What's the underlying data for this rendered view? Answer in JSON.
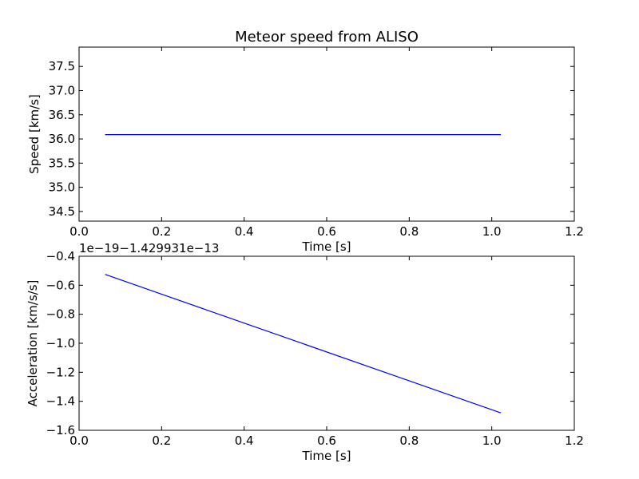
{
  "chart_data": [
    {
      "type": "line",
      "title": "Meteor speed from  ALISO",
      "xlabel": "Time [s]",
      "ylabel": "Speed [km/s]",
      "xlim": [
        0.0,
        1.2
      ],
      "ylim": [
        34.3,
        37.9
      ],
      "xticks": [
        "0.0",
        "0.2",
        "0.4",
        "0.6",
        "0.8",
        "1.0",
        "1.2"
      ],
      "yticks": [
        "34.5",
        "35.0",
        "35.5",
        "36.0",
        "36.5",
        "37.0",
        "37.5"
      ],
      "grid": false,
      "series": [
        {
          "color": "#0000ff",
          "x": [
            0.063,
            1.022
          ],
          "y": [
            36.09,
            36.09
          ]
        }
      ]
    },
    {
      "type": "line",
      "title": "",
      "xlabel": "Time [s]",
      "ylabel": "Acceleration [km/s/s]",
      "offset_text": "1e−19−1.429931e−13",
      "xlim": [
        0.0,
        1.2
      ],
      "ylim": [
        -1.6,
        -0.4
      ],
      "xticks": [
        "0.0",
        "0.2",
        "0.4",
        "0.6",
        "0.8",
        "1.0",
        "1.2"
      ],
      "yticks": [
        "−1.6",
        "−1.4",
        "−1.2",
        "−1.0",
        "−0.8",
        "−0.6",
        "−0.4"
      ],
      "grid": false,
      "series": [
        {
          "color": "#0000ff",
          "x": [
            0.063,
            1.022
          ],
          "y": [
            -0.525,
            -1.48
          ]
        }
      ]
    }
  ]
}
